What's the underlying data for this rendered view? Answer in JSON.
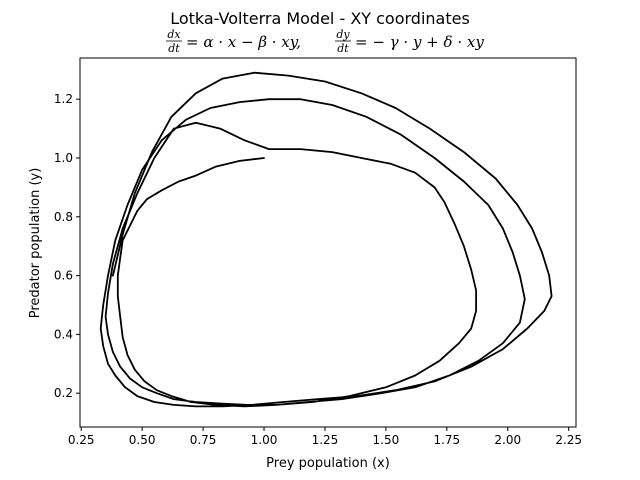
{
  "chart_data": {
    "type": "line",
    "title": "Lotka-Volterra Model - XY coordinates",
    "equation1": {
      "frac_num": "dx",
      "frac_den": "dt",
      "rhs": "= α · x − β · xy,"
    },
    "equation2": {
      "frac_num": "dy",
      "frac_den": "dt",
      "rhs": "= − γ · y + δ · xy"
    },
    "xlabel": "Prey population (x)",
    "ylabel": "Predator population (y)",
    "xlim": [
      0.245,
      2.28
    ],
    "ylim": [
      0.085,
      1.34
    ],
    "xticks": [
      0.25,
      0.5,
      0.75,
      1.0,
      1.25,
      1.5,
      1.75,
      2.0,
      2.25
    ],
    "xtick_labels": [
      "0.25",
      "0.50",
      "0.75",
      "1.00",
      "1.25",
      "1.50",
      "1.75",
      "2.00",
      "2.25"
    ],
    "yticks": [
      0.2,
      0.4,
      0.6,
      0.8,
      1.0,
      1.2
    ],
    "ytick_labels": [
      "0.2",
      "0.4",
      "0.6",
      "0.8",
      "1.0",
      "1.2"
    ],
    "grid": false,
    "line_color": "#000000",
    "series": [
      {
        "x": [
          1.0,
          0.9,
          0.8,
          0.72,
          0.65,
          0.58,
          0.52,
          0.48,
          0.45,
          0.42,
          0.41,
          0.4,
          0.4,
          0.41,
          0.42,
          0.44,
          0.47,
          0.51,
          0.56,
          0.62,
          0.7,
          0.8,
          0.92,
          1.05,
          1.2,
          1.35,
          1.5,
          1.62,
          1.72,
          1.8,
          1.85,
          1.87,
          1.87,
          1.85,
          1.82,
          1.78,
          1.74,
          1.7,
          1.62,
          1.52,
          1.4,
          1.28,
          1.15,
          1.02,
          0.92,
          0.82,
          0.72,
          0.63,
          0.55,
          0.48,
          0.42,
          0.38,
          0.36,
          0.35,
          0.36,
          0.38,
          0.41,
          0.45,
          0.5,
          0.56,
          0.63,
          0.72,
          0.82,
          0.93,
          1.05,
          1.18,
          1.32,
          1.48,
          1.62,
          1.76,
          1.88,
          1.98,
          2.05,
          2.07,
          2.05,
          2.02,
          1.98,
          1.92,
          1.82,
          1.7,
          1.56,
          1.42,
          1.28,
          1.15,
          1.02,
          0.9,
          0.78,
          0.68,
          0.58,
          0.5,
          0.44,
          0.39,
          0.36,
          0.34,
          0.33,
          0.34,
          0.36,
          0.39,
          0.43,
          0.48,
          0.55,
          0.63,
          0.72,
          0.83,
          0.95,
          1.08,
          1.22,
          1.38,
          1.54,
          1.7,
          1.85,
          1.98,
          2.08,
          2.15,
          2.18,
          2.17,
          2.14,
          2.1,
          2.04,
          1.95,
          1.82,
          1.68,
          1.54,
          1.4,
          1.25,
          1.1,
          0.96,
          0.83,
          0.72,
          0.62,
          0.54,
          0.47,
          0.42,
          0.38
        ],
        "y": [
          1.0,
          0.99,
          0.97,
          0.94,
          0.92,
          0.89,
          0.86,
          0.82,
          0.77,
          0.72,
          0.66,
          0.6,
          0.53,
          0.46,
          0.39,
          0.33,
          0.28,
          0.24,
          0.21,
          0.19,
          0.17,
          0.16,
          0.155,
          0.16,
          0.17,
          0.19,
          0.22,
          0.26,
          0.31,
          0.37,
          0.42,
          0.48,
          0.55,
          0.62,
          0.7,
          0.78,
          0.85,
          0.9,
          0.95,
          0.98,
          1.0,
          1.02,
          1.03,
          1.03,
          1.06,
          1.1,
          1.12,
          1.1,
          1.0,
          0.88,
          0.76,
          0.64,
          0.54,
          0.46,
          0.4,
          0.34,
          0.29,
          0.25,
          0.22,
          0.2,
          0.18,
          0.17,
          0.165,
          0.16,
          0.16,
          0.17,
          0.18,
          0.2,
          0.22,
          0.26,
          0.31,
          0.37,
          0.44,
          0.52,
          0.6,
          0.68,
          0.76,
          0.84,
          0.92,
          1.0,
          1.08,
          1.14,
          1.18,
          1.2,
          1.2,
          1.19,
          1.17,
          1.13,
          1.06,
          0.96,
          0.84,
          0.72,
          0.6,
          0.5,
          0.42,
          0.36,
          0.3,
          0.26,
          0.22,
          0.19,
          0.17,
          0.16,
          0.155,
          0.155,
          0.16,
          0.17,
          0.18,
          0.19,
          0.21,
          0.24,
          0.29,
          0.35,
          0.42,
          0.48,
          0.53,
          0.6,
          0.68,
          0.76,
          0.84,
          0.93,
          1.02,
          1.1,
          1.17,
          1.22,
          1.26,
          1.28,
          1.29,
          1.27,
          1.22,
          1.14,
          1.02,
          0.88,
          0.74,
          0.6
        ]
      }
    ]
  }
}
